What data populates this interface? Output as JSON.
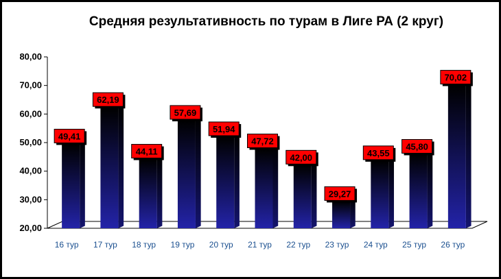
{
  "chart_data": {
    "type": "bar",
    "title": "Средняя результативность по турам в Лиге РА (2 круг)",
    "categories": [
      "16 тур",
      "17 тур",
      "18 тур",
      "19 тур",
      "20 тур",
      "21 тур",
      "22 тур",
      "23 тур",
      "24 тур",
      "25 тур",
      "26 тур"
    ],
    "values": [
      49.41,
      62.19,
      44.11,
      57.69,
      51.94,
      47.72,
      42.0,
      29.27,
      43.55,
      45.8,
      70.02
    ],
    "value_labels": [
      "49,41",
      "62,19",
      "44,11",
      "57,69",
      "51,94",
      "47,72",
      "42,00",
      "29,27",
      "43,55",
      "45,80",
      "70,02"
    ],
    "yticks": [
      "20,00",
      "30,00",
      "40,00",
      "50,00",
      "60,00",
      "70,00",
      "80,00"
    ],
    "ylim": [
      20,
      80
    ],
    "xlabel": "",
    "ylabel": "",
    "grid": false,
    "legend": "none",
    "colors": {
      "bar_top": "#000000",
      "bar_bottom": "#2323a8",
      "label_fill": "#ff0000",
      "label_border": "#000000",
      "tick_x": "#1a4f8f"
    }
  }
}
